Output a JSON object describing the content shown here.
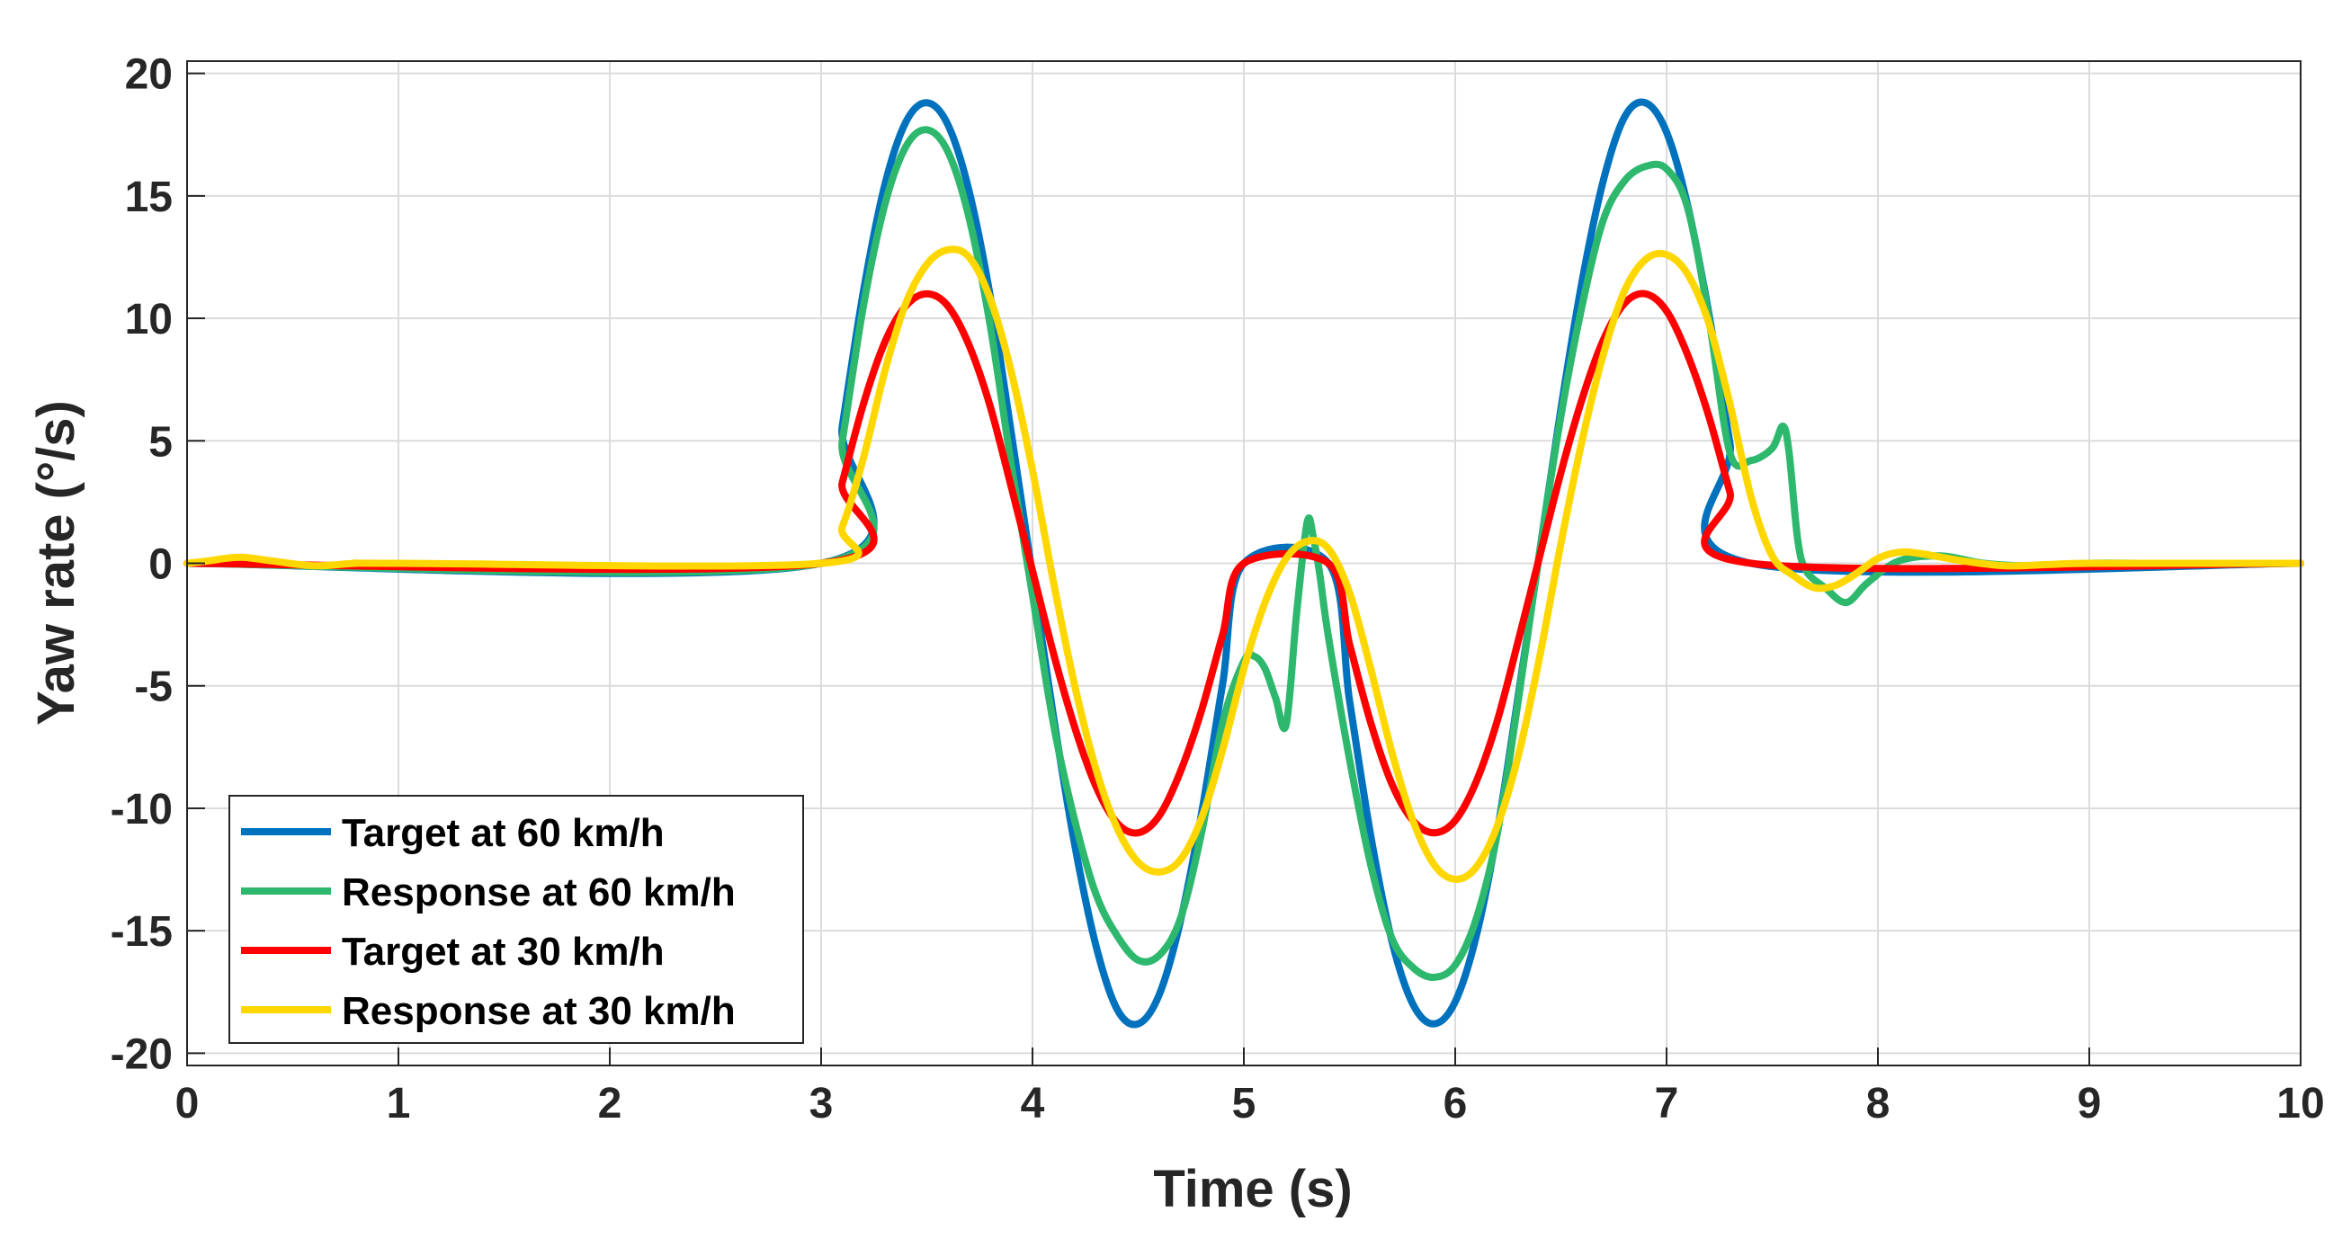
{
  "chart_data": {
    "type": "line",
    "xlabel": "Time (s)",
    "ylabel": "Yaw rate (°/s)",
    "xlim": [
      0,
      10
    ],
    "ylim": [
      -20.5,
      20.5
    ],
    "xticks": [
      0,
      1,
      2,
      3,
      4,
      5,
      6,
      7,
      8,
      9,
      10
    ],
    "yticks": [
      -20,
      -15,
      -10,
      -5,
      0,
      5,
      10,
      15,
      20
    ],
    "grid": true,
    "legend_position": "bottom-left",
    "series": [
      {
        "name": "Target at 60 km/h",
        "color": "#0072BD",
        "x": [
          0,
          3,
          3.1,
          3.2,
          3.3,
          3.4,
          3.5,
          3.6,
          3.7,
          3.8,
          3.9,
          4.0,
          4.1,
          4.2,
          4.3,
          4.4,
          4.5,
          4.6,
          4.7,
          4.8,
          4.9,
          5.0,
          5.4,
          5.5,
          5.6,
          5.7,
          5.8,
          5.9,
          6.0,
          6.1,
          6.2,
          6.3,
          6.4,
          6.5,
          6.6,
          6.7,
          6.8,
          6.9,
          7.0,
          7.1,
          7.2,
          7.3,
          7.4,
          10
        ],
        "y": [
          0,
          0,
          5.6,
          11.1,
          15.4,
          18.0,
          18.8,
          17.9,
          15.2,
          10.9,
          5.3,
          -0.5,
          -6.3,
          -11.5,
          -15.6,
          -18.2,
          -18.8,
          -17.6,
          -14.6,
          -10.2,
          -4.9,
          0,
          0,
          -5.6,
          -11.1,
          -15.4,
          -18.0,
          -18.8,
          -17.9,
          -15.2,
          -10.9,
          -5.3,
          0.5,
          6.3,
          11.5,
          15.6,
          18.2,
          18.8,
          17.6,
          14.6,
          10.2,
          4.9,
          0,
          0
        ]
      },
      {
        "name": "Response at 60 km/h",
        "color": "#2EB86E",
        "x": [
          0,
          3,
          3.1,
          3.2,
          3.3,
          3.4,
          3.5,
          3.6,
          3.7,
          3.8,
          3.9,
          4.0,
          4.1,
          4.2,
          4.3,
          4.4,
          4.5,
          4.6,
          4.7,
          4.8,
          4.9,
          5.0,
          5.05,
          5.1,
          5.15,
          5.2,
          5.25,
          5.3,
          5.33,
          5.36,
          5.4,
          5.5,
          5.6,
          5.7,
          5.8,
          5.9,
          6.0,
          6.1,
          6.2,
          6.3,
          6.4,
          6.5,
          6.6,
          6.7,
          6.8,
          6.9,
          7.0,
          7.1,
          7.2,
          7.3,
          7.4,
          7.5,
          7.55,
          7.58,
          7.62,
          7.66,
          7.75,
          7.85,
          7.95,
          8.1,
          8.3,
          8.5,
          8.7,
          9.0,
          9.3,
          10
        ],
        "y": [
          0,
          0,
          5.0,
          10.5,
          14.6,
          17.0,
          17.7,
          16.8,
          14.1,
          9.7,
          4.0,
          -1.3,
          -6.6,
          -10.5,
          -13.5,
          -15.2,
          -16.2,
          -16.0,
          -14.5,
          -11.0,
          -6.5,
          -4.0,
          -3.8,
          -4.3,
          -5.5,
          -6.6,
          -2.0,
          1.7,
          1.0,
          -0.5,
          -3.0,
          -8.0,
          -12.3,
          -15.3,
          -16.5,
          -16.9,
          -16.4,
          -14.5,
          -11.0,
          -5.5,
          0.5,
          6.0,
          10.5,
          14.0,
          15.6,
          16.2,
          16.1,
          14.5,
          10.0,
          4.5,
          4.2,
          4.7,
          5.6,
          4.5,
          1.0,
          -0.3,
          -1.0,
          -1.6,
          -0.8,
          0.1,
          0.3,
          0.0,
          -0.1,
          0.0,
          0.0,
          0.0
        ]
      },
      {
        "name": "Target at 30 km/h",
        "color": "#FF0000",
        "x": [
          0,
          3,
          3.1,
          3.2,
          3.3,
          3.4,
          3.5,
          3.6,
          3.7,
          3.8,
          3.9,
          4.0,
          4.1,
          4.2,
          4.3,
          4.4,
          4.5,
          4.6,
          4.7,
          4.8,
          4.9,
          5.0,
          5.4,
          5.5,
          5.6,
          5.7,
          5.8,
          5.9,
          6.0,
          6.1,
          6.2,
          6.3,
          6.4,
          6.5,
          6.6,
          6.7,
          6.8,
          6.9,
          7.0,
          7.1,
          7.2,
          7.3,
          7.4,
          10
        ],
        "y": [
          0,
          0,
          3.3,
          6.5,
          9.0,
          10.5,
          11.0,
          10.5,
          8.9,
          6.4,
          3.1,
          -0.3,
          -3.7,
          -6.7,
          -9.1,
          -10.6,
          -11.0,
          -10.3,
          -8.5,
          -6.0,
          -2.9,
          0,
          0,
          -3.3,
          -6.5,
          -9.0,
          -10.5,
          -11.0,
          -10.5,
          -8.9,
          -6.4,
          -3.1,
          0.3,
          3.7,
          6.7,
          9.1,
          10.6,
          11.0,
          10.3,
          8.5,
          6.0,
          2.9,
          0,
          0
        ]
      },
      {
        "name": "Response at 30 km/h",
        "color": "#FFD700",
        "x": [
          0,
          0.1,
          0.25,
          0.4,
          0.6,
          0.8,
          1.0,
          3,
          3.1,
          3.2,
          3.3,
          3.4,
          3.5,
          3.6,
          3.7,
          3.8,
          3.9,
          4.0,
          4.1,
          4.2,
          4.3,
          4.4,
          4.5,
          4.6,
          4.7,
          4.8,
          4.9,
          5.0,
          5.1,
          5.2,
          5.3,
          5.4,
          5.5,
          5.6,
          5.7,
          5.8,
          5.9,
          6.0,
          6.1,
          6.2,
          6.3,
          6.4,
          6.5,
          6.6,
          6.7,
          6.8,
          6.9,
          7.0,
          7.1,
          7.2,
          7.3,
          7.4,
          7.5,
          7.6,
          7.7,
          7.8,
          7.9,
          8.0,
          8.1,
          8.2,
          8.4,
          8.6,
          8.8,
          9.0,
          9.5,
          10
        ],
        "y": [
          0,
          0.1,
          0.25,
          0.1,
          -0.1,
          0,
          0,
          0,
          1.5,
          4.3,
          7.8,
          10.6,
          12.2,
          12.8,
          12.5,
          10.8,
          7.8,
          3.8,
          -0.8,
          -5.0,
          -8.4,
          -10.8,
          -12.2,
          -12.6,
          -12.1,
          -10.4,
          -7.6,
          -4.3,
          -1.6,
          0.2,
          0.9,
          0.6,
          -1.2,
          -4.3,
          -7.7,
          -10.5,
          -12.3,
          -12.9,
          -12.4,
          -10.7,
          -7.8,
          -3.8,
          0.8,
          5.0,
          8.5,
          11.1,
          12.4,
          12.6,
          11.8,
          9.8,
          6.5,
          2.7,
          0.3,
          -0.5,
          -1.0,
          -0.9,
          -0.4,
          0.2,
          0.45,
          0.4,
          0.1,
          -0.1,
          -0.05,
          0,
          0,
          0
        ]
      }
    ]
  }
}
